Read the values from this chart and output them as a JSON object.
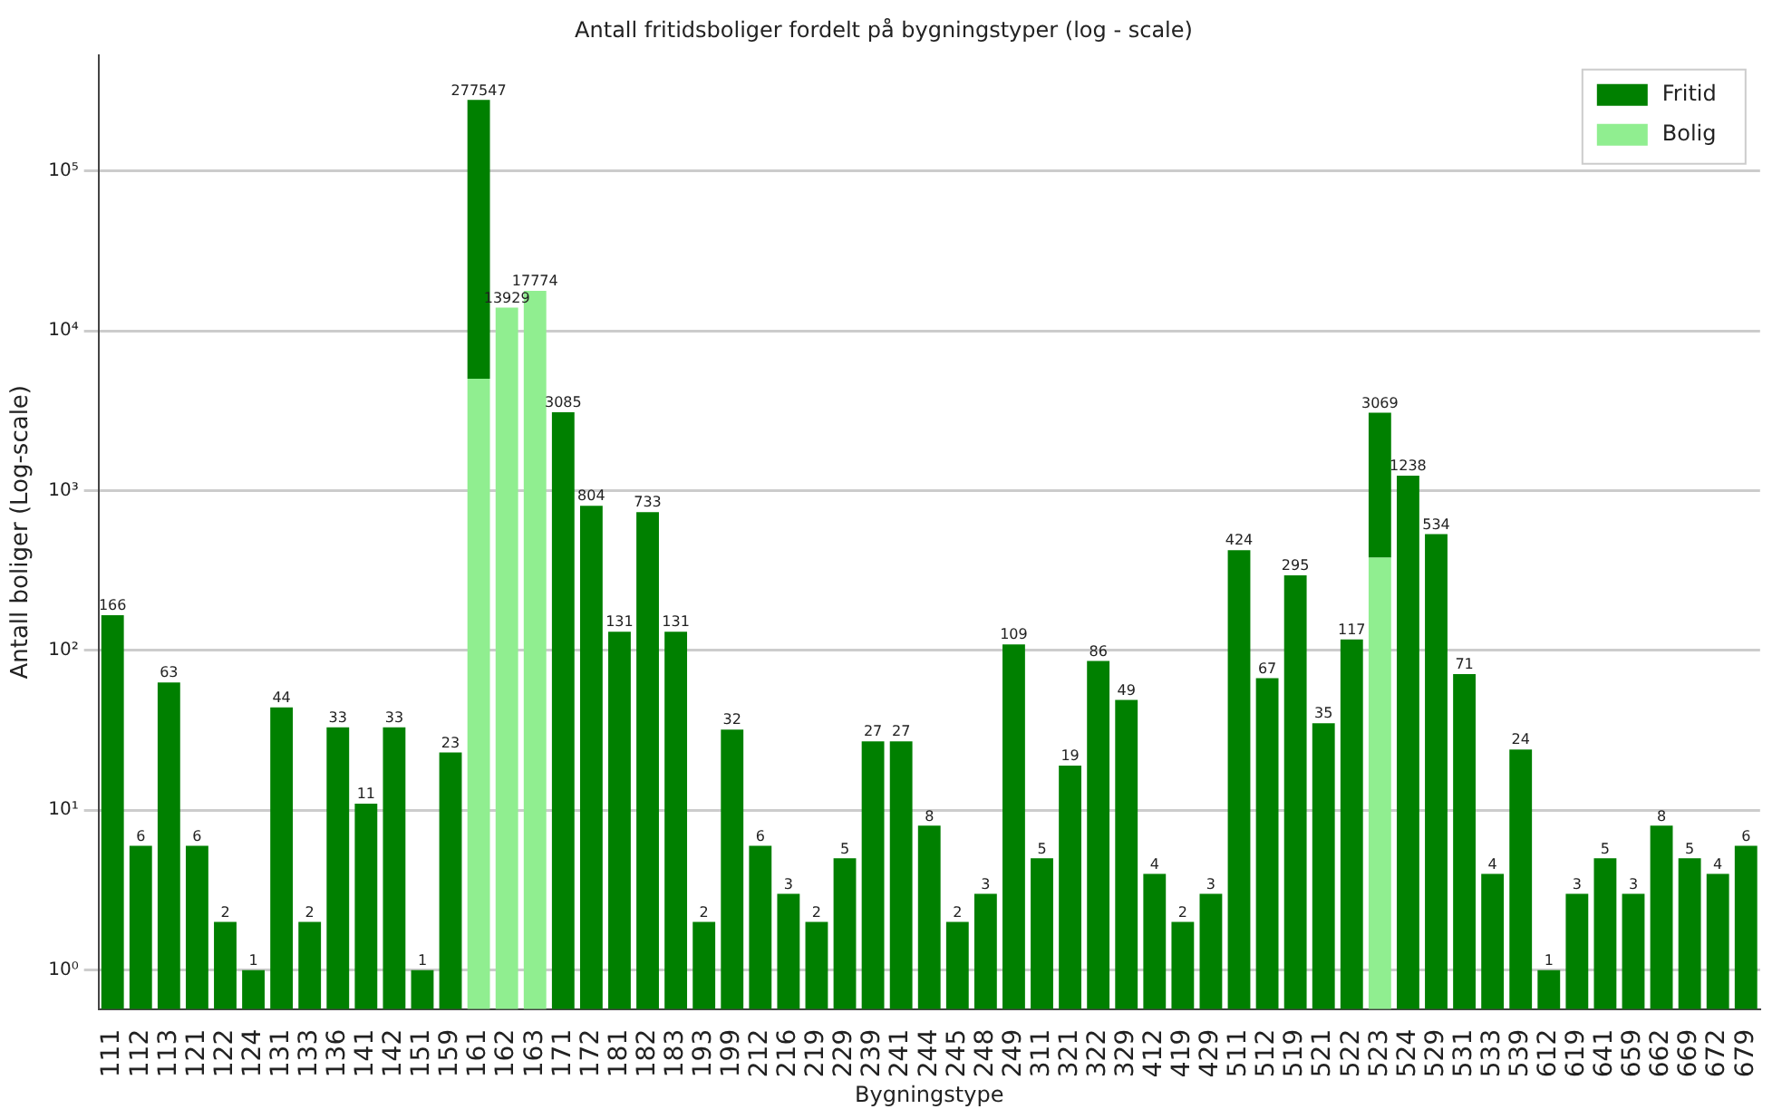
{
  "chart_data": {
    "type": "bar",
    "title": "Antall fritidsboliger fordelt på bygningstyper (log - scale)",
    "xlabel": "Bygningstype",
    "ylabel": "Antall boliger (Log-scale)",
    "categories": [
      "111",
      "112",
      "113",
      "121",
      "122",
      "124",
      "131",
      "133",
      "136",
      "141",
      "142",
      "151",
      "159",
      "161",
      "162",
      "163",
      "171",
      "172",
      "181",
      "182",
      "183",
      "193",
      "199",
      "212",
      "216",
      "219",
      "229",
      "239",
      "241",
      "244",
      "245",
      "248",
      "249",
      "311",
      "321",
      "322",
      "329",
      "412",
      "419",
      "429",
      "511",
      "512",
      "519",
      "521",
      "522",
      "523",
      "524",
      "529",
      "531",
      "533",
      "539",
      "612",
      "619",
      "641",
      "659",
      "662",
      "669",
      "672",
      "679"
    ],
    "stacked": true,
    "series": [
      {
        "name": "Bolig",
        "color": "#90ee90",
        "values": [
          null,
          null,
          null,
          null,
          null,
          null,
          null,
          null,
          null,
          null,
          null,
          null,
          null,
          5000,
          13929,
          17774,
          null,
          null,
          null,
          null,
          null,
          null,
          null,
          null,
          null,
          null,
          null,
          null,
          null,
          null,
          null,
          null,
          null,
          null,
          null,
          null,
          null,
          null,
          null,
          null,
          null,
          null,
          null,
          null,
          null,
          380,
          null,
          null,
          null,
          null,
          null,
          null,
          null,
          null,
          null,
          null,
          null,
          null,
          null
        ]
      },
      {
        "name": "Fritid",
        "color": "#008000",
        "values": [
          166,
          6,
          63,
          6,
          2,
          1,
          44,
          2,
          33,
          11,
          33,
          1,
          23,
          272547,
          null,
          null,
          3085,
          804,
          131,
          733,
          131,
          2,
          32,
          6,
          3,
          2,
          5,
          27,
          27,
          8,
          2,
          3,
          109,
          5,
          19,
          86,
          49,
          4,
          2,
          3,
          424,
          67,
          295,
          35,
          117,
          2689,
          1238,
          534,
          71,
          4,
          24,
          1,
          3,
          5,
          3,
          8,
          5,
          4,
          6
        ]
      }
    ],
    "totals": [
      "166",
      "6",
      "63",
      "6",
      "2",
      "1",
      "44",
      "2",
      "33",
      "11",
      "33",
      "1",
      "23",
      "277547",
      "13929",
      "17774",
      "3085",
      "804",
      "131",
      "733",
      "131",
      "2",
      "32",
      "6",
      "3",
      "2",
      "5",
      "27",
      "27",
      "8",
      "2",
      "3",
      "109",
      "5",
      "19",
      "86",
      "49",
      "4",
      "2",
      "3",
      "424",
      "67",
      "295",
      "35",
      "117",
      "3069",
      "1238",
      "534",
      "71",
      "4",
      "24",
      "1",
      "3",
      "5",
      "3",
      "8",
      "5",
      "4",
      "6"
    ],
    "log": "y",
    "ylim": [
      0.57,
      530000
    ],
    "yticks": [
      {
        "value": 1,
        "label": "10⁰"
      },
      {
        "value": 10,
        "label": "10¹"
      },
      {
        "value": 100,
        "label": "10²"
      },
      {
        "value": 1000,
        "label": "10³"
      },
      {
        "value": 10000,
        "label": "10⁴"
      },
      {
        "value": 100000,
        "label": "10⁵"
      }
    ],
    "grid": "y",
    "legend": "top right"
  }
}
